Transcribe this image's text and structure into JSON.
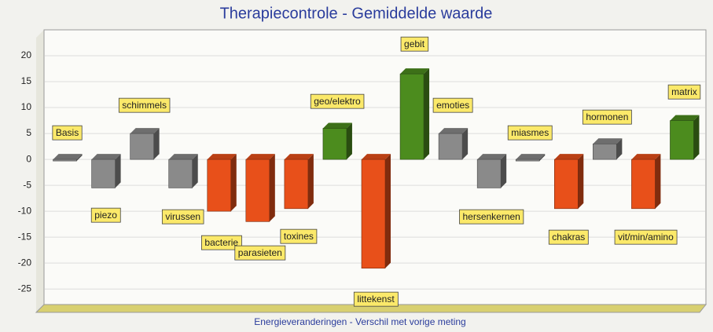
{
  "chart_data": {
    "type": "bar3d",
    "title": "Therapiecontrole - Gemiddelde waarde",
    "x_label": "Energieveranderingen - Verschil met vorige meting",
    "categories": [
      "Basis",
      "piezo",
      "schimmels",
      "virussen",
      "bacterie",
      "parasieten",
      "toxines",
      "geo/elektro",
      "littekenst",
      "gebit",
      "emoties",
      "hersenkernen",
      "miasmes",
      "chakras",
      "hormonen",
      "vit/min/amino",
      "matrix"
    ],
    "values": [
      0,
      -5.5,
      5,
      -5.5,
      -10,
      -12,
      -9.5,
      6,
      -21,
      16.5,
      5,
      -5.5,
      0,
      -9.5,
      3,
      -9.5,
      7.5
    ],
    "colors": [
      "#8a8a8a",
      "#8a8a8a",
      "#8a8a8a",
      "#8a8a8a",
      "#e8501a",
      "#e8501a",
      "#e8501a",
      "#4c8c1e",
      "#e8501a",
      "#4c8c1e",
      "#8a8a8a",
      "#8a8a8a",
      "#8a8a8a",
      "#e8501a",
      "#8a8a8a",
      "#e8501a",
      "#4c8c1e"
    ],
    "ylim": [
      -28,
      25
    ],
    "yticks": [
      -25,
      -20,
      -15,
      -10,
      -5,
      0,
      5,
      10,
      15,
      20
    ],
    "grid": true
  }
}
